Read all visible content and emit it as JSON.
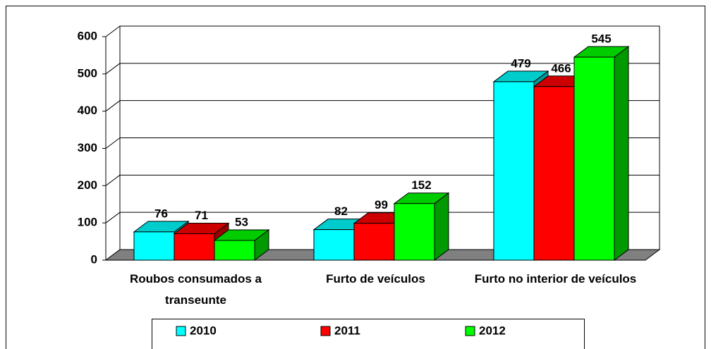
{
  "chart_data": {
    "type": "bar3d",
    "categories": [
      "Roubos consumados a transeunte",
      "Furto de veículos",
      "Furto no interior de veículos"
    ],
    "series": [
      {
        "name": "2010",
        "color": "#00ffff",
        "values": [
          76,
          82,
          479
        ]
      },
      {
        "name": "2011",
        "color": "#ff0000",
        "values": [
          71,
          99,
          466
        ]
      },
      {
        "name": "2012",
        "color": "#00ff00",
        "values": [
          53,
          152,
          545
        ]
      }
    ],
    "ylim": [
      0,
      600
    ],
    "yticks": [
      0,
      100,
      200,
      300,
      400,
      500,
      600
    ],
    "grid": true,
    "legend": "bottom"
  }
}
